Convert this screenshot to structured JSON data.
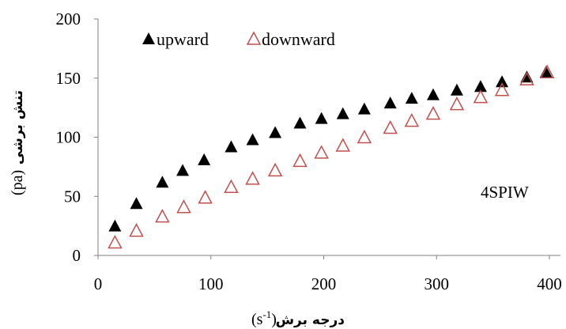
{
  "chart_data": {
    "type": "scatter",
    "title": "",
    "annotation": "4SPIW",
    "xlabel": "درجه برش",
    "xlabel_unit": "(s-1)",
    "ylabel": "تنش برشی",
    "ylabel_unit": "(pa)",
    "xlim": [
      0,
      400
    ],
    "ylim": [
      0,
      200
    ],
    "xticks": [
      "0",
      "100",
      "200",
      "300",
      "400"
    ],
    "yticks": [
      "0",
      "50",
      "100",
      "150",
      "200"
    ],
    "grid": false,
    "legend_position": "top-left",
    "series": [
      {
        "name": "upward",
        "marker": "filled-triangle",
        "color": "#000000",
        "x": [
          15,
          34,
          57,
          75,
          94,
          118,
          137,
          157,
          179,
          198,
          217,
          236,
          259,
          278,
          297,
          318,
          339,
          358,
          380,
          397
        ],
        "y": [
          25,
          44,
          62,
          72,
          81,
          92,
          98,
          104,
          112,
          116,
          120,
          124,
          129,
          133,
          136,
          140,
          143,
          147,
          151,
          155
        ]
      },
      {
        "name": "downward",
        "marker": "hollow-triangle",
        "color": "#c0504d",
        "x": [
          15,
          34,
          57,
          76,
          95,
          118,
          137,
          157,
          179,
          198,
          217,
          236,
          259,
          278,
          297,
          318,
          339,
          358,
          380,
          398
        ],
        "y": [
          11,
          21,
          33,
          41,
          49,
          58,
          65,
          72,
          80,
          87,
          93,
          100,
          108,
          114,
          120,
          128,
          134,
          140,
          149,
          155
        ]
      }
    ]
  }
}
